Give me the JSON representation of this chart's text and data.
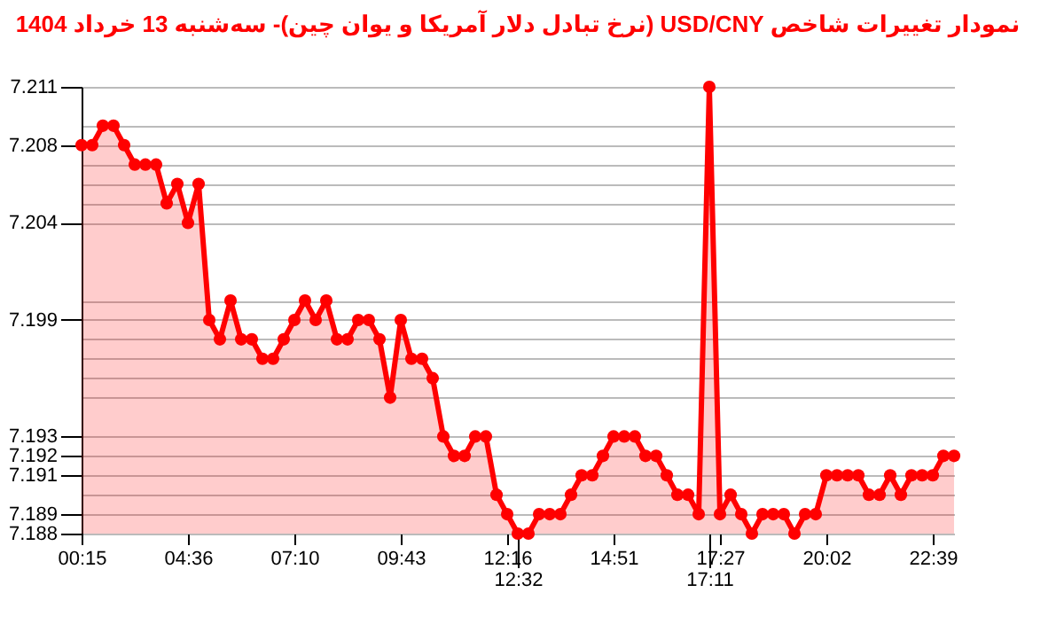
{
  "chart_data": {
    "type": "area",
    "title": "نمودار تغییرات شاخص USD/CNY (نرخ تبادل دلار آمریکا و یوان چین)- سه‌شنبه 13 خرداد 1404",
    "categories": [
      "00:15",
      null,
      null,
      null,
      null,
      null,
      null,
      null,
      null,
      null,
      "04:36",
      null,
      null,
      null,
      null,
      null,
      null,
      null,
      null,
      null,
      "07:10",
      null,
      null,
      null,
      null,
      null,
      null,
      null,
      null,
      null,
      "09:43",
      null,
      null,
      null,
      null,
      null,
      null,
      null,
      null,
      null,
      "12:16",
      "12:32",
      null,
      null,
      null,
      null,
      null,
      null,
      null,
      null,
      "14:51",
      null,
      null,
      null,
      null,
      null,
      null,
      null,
      null,
      "17:11",
      "17:27",
      null,
      null,
      null,
      null,
      null,
      null,
      null,
      null,
      null,
      "20:02",
      null,
      null,
      null,
      null,
      null,
      null,
      null,
      null,
      null,
      "22:39",
      null,
      null
    ],
    "series": [
      {
        "color": "#ff0000",
        "values": [
          7.208,
          7.208,
          7.209,
          7.209,
          7.208,
          7.207,
          7.207,
          7.207,
          7.205,
          7.206,
          7.204,
          7.206,
          7.199,
          7.198,
          7.2,
          7.198,
          7.198,
          7.197,
          7.197,
          7.198,
          7.199,
          7.2,
          7.199,
          7.2,
          7.198,
          7.198,
          7.199,
          7.199,
          7.198,
          7.195,
          7.199,
          7.197,
          7.197,
          7.196,
          7.193,
          7.192,
          7.192,
          7.193,
          7.193,
          7.19,
          7.189,
          7.188,
          7.188,
          7.189,
          7.189,
          7.189,
          7.19,
          7.191,
          7.191,
          7.192,
          7.193,
          7.193,
          7.193,
          7.192,
          7.192,
          7.191,
          7.19,
          7.19,
          7.189,
          7.211,
          7.189,
          7.19,
          7.189,
          7.188,
          7.189,
          7.189,
          7.189,
          7.188,
          7.189,
          7.189,
          7.191,
          7.191,
          7.191,
          7.191,
          7.19,
          7.19,
          7.191,
          7.19,
          7.191,
          7.191,
          7.191,
          7.192,
          7.192
        ]
      }
    ],
    "ylim": [
      7.188,
      7.211
    ],
    "yticks": [
      7.188,
      7.189,
      {
        "value": 7.19,
        "label": null
      },
      7.191,
      7.192,
      7.193,
      {
        "value": 7.195,
        "label": null
      },
      {
        "value": 7.196,
        "label": null
      },
      {
        "value": 7.197,
        "label": null
      },
      {
        "value": 7.198,
        "label": null
      },
      7.199,
      {
        "value": 7.2,
        "label": null
      },
      7.204,
      {
        "value": 7.205,
        "label": null
      },
      {
        "value": 7.206,
        "label": null
      },
      {
        "value": 7.207,
        "label": null
      },
      7.208,
      {
        "value": 7.209,
        "label": null
      },
      7.211
    ],
    "grid": "y",
    "marker": "circle",
    "line_style": "solid"
  }
}
